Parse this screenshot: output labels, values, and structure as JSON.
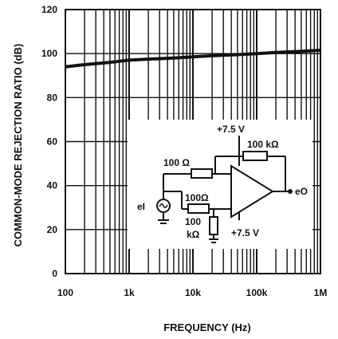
{
  "chart_data": {
    "type": "line",
    "xlabel": "FREQUENCY (Hz)",
    "ylabel": "COMMON-MODE REJECTION RATIO (dB)",
    "x_scale": "log",
    "xlim": [
      100,
      1000000
    ],
    "ylim": [
      0,
      120
    ],
    "x_ticks": [
      100,
      1000,
      10000,
      100000,
      1000000
    ],
    "x_tick_labels": [
      "100",
      "1k",
      "10k",
      "100k",
      "1M"
    ],
    "y_ticks": [
      0,
      20,
      40,
      60,
      80,
      100,
      120
    ],
    "y_tick_labels": [
      "0",
      "20",
      "40",
      "60",
      "80",
      "100",
      "120"
    ],
    "grid": true,
    "series": [
      {
        "x": [
          100,
          200,
          500,
          1000,
          2000,
          5000,
          10000,
          20000,
          50000,
          100000,
          200000,
          500000,
          1000000
        ],
        "y": [
          94,
          95,
          96,
          97,
          97.5,
          98,
          98.5,
          99,
          99.5,
          100,
          100.5,
          101,
          101.5
        ]
      }
    ]
  },
  "circuit_inset": {
    "supply_top": "+7.5 V",
    "supply_bottom": "+7.5 V",
    "feedback_resistor": "100 kΩ",
    "input_resistor_top": "100 Ω",
    "input_resistor_bottom": "100Ω",
    "ground_resistor_value": "100",
    "ground_resistor_unit": "kΩ",
    "input_label": "eI",
    "output_label": "eO"
  }
}
